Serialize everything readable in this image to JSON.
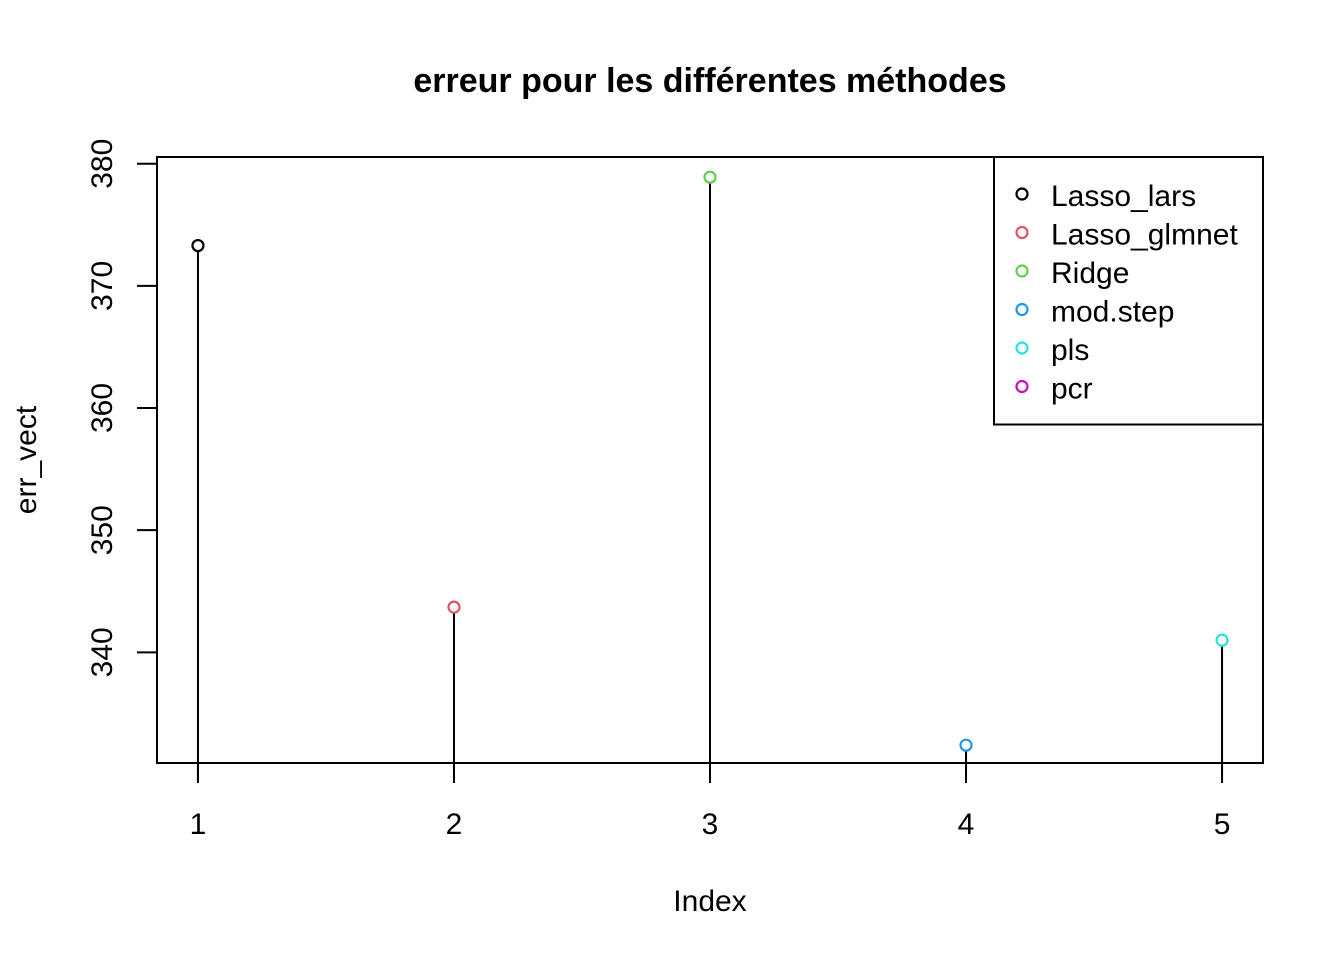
{
  "chart_data": {
    "type": "scatter",
    "subtype": "histogram-lines-with-points",
    "title": "erreur pour les différentes méthodes",
    "xlabel": "Index",
    "ylabel": "err_vect",
    "x": [
      1,
      2,
      3,
      4,
      5
    ],
    "values": [
      373.3,
      343.7,
      378.9,
      332.4,
      341.0
    ],
    "point_colors": [
      "#000000",
      "#DF536B",
      "#61D04F",
      "#2297E6",
      "#28E2E5"
    ],
    "xticks": [
      "1",
      "2",
      "3",
      "4",
      "5"
    ],
    "yticks": [
      "340",
      "350",
      "360",
      "370",
      "380"
    ],
    "ylim": [
      331,
      380
    ],
    "grid": false,
    "legend": {
      "placement": "top-right",
      "entries": [
        {
          "name": "Lasso_lars",
          "color": "#000000"
        },
        {
          "name": "Lasso_glmnet",
          "color": "#DF536B"
        },
        {
          "name": "Ridge",
          "color": "#61D04F"
        },
        {
          "name": "mod.step",
          "color": "#2297E6"
        },
        {
          "name": "pls",
          "color": "#28E2E5"
        },
        {
          "name": "pcr",
          "color": "#CD0BBC"
        }
      ]
    }
  }
}
